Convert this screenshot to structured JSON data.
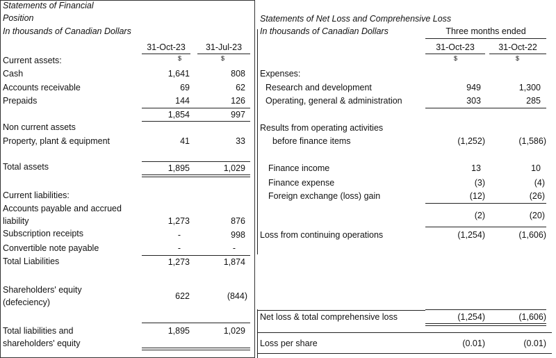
{
  "left": {
    "title1": "Statements of Financial",
    "title2": "Position",
    "title3": "In thousands of Canadian Dollars",
    "col1": "31-Oct-23",
    "col2": "31-Jul-23",
    "cur1": "$",
    "cur2": "$",
    "current_assets": "Current assets:",
    "cash": {
      "label": "Cash",
      "v1": "1,641",
      "v2": "808"
    },
    "receivable": {
      "label": "Accounts receivable",
      "v1": "69",
      "v2": "62"
    },
    "prepaids": {
      "label": "Prepaids",
      "v1": "144",
      "v2": "126"
    },
    "subtotal": {
      "v1": "1,854",
      "v2": "997"
    },
    "non_current": "Non current assets",
    "ppe": {
      "label": "Property, plant & equipment",
      "v1": "41",
      "v2": "33"
    },
    "total_assets": {
      "label": "Total assets",
      "v1": "1,895",
      "v2": "1,029"
    },
    "current_liabilities": "Current liabilities:",
    "payable": {
      "label1": "Accounts payable and accrued",
      "label2": "liability",
      "v1": "1,273",
      "v2": "876"
    },
    "subscription": {
      "label": "Subscription receipts",
      "v1": "-",
      "v2": "998"
    },
    "convertible": {
      "label": "Convertible note payable",
      "v1": "-",
      "v2": "-"
    },
    "total_liabilities": {
      "label": "Total Liabilities",
      "v1": "1,273",
      "v2": "1,874"
    },
    "equity": {
      "label1": "Shareholders' equity",
      "label2": "(defeciency)",
      "v1": "622",
      "v2": "(844)"
    },
    "total_le": {
      "label1": "Total liabilities and",
      "label2": "shareholders' equity",
      "v1": "1,895",
      "v2": "1,029"
    }
  },
  "right": {
    "title1": "Statements of Net Loss and Comprehensive Loss",
    "title2": "In thousands of Canadian Dollars",
    "period": "Three months ended",
    "col1": "31-Oct-23",
    "col2": "31-Oct-22",
    "cur1": "$",
    "cur2": "$",
    "expenses": "Expenses:",
    "rd": {
      "label": "Research and development",
      "v1": "949",
      "v2": "1,300"
    },
    "oga": {
      "label": "Operating, general & administration",
      "v1": "303",
      "v2": "285"
    },
    "results": {
      "label1": "Results from operating activities",
      "label2": "before finance items",
      "v1": "(1,252)",
      "v2": "(1,586)"
    },
    "fin_income": {
      "label": "Finance income",
      "v1": "13",
      "v2": "10"
    },
    "fin_expense": {
      "label": "Finance expense",
      "v1": "(3)",
      "v2": "(4)"
    },
    "fx": {
      "label": "Foreign exchange (loss) gain",
      "v1": "(12)",
      "v2": "(26)"
    },
    "fin_sub": {
      "v1": "(2)",
      "v2": "(20)"
    },
    "loss_cont": {
      "label": "Loss from continuing operations",
      "v1": "(1,254)",
      "v2": "(1,606)"
    },
    "net_loss": {
      "label": "Net loss & total comprehensive loss",
      "v1": "(1,254)",
      "v2": "(1,606)"
    },
    "lps": {
      "label": "Loss per share",
      "v1": "(0.01)",
      "v2": "(0.01)"
    }
  }
}
